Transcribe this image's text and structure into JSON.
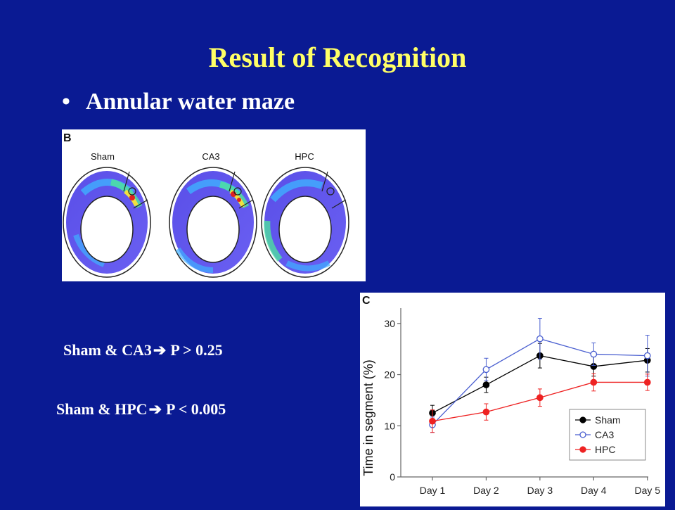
{
  "slide": {
    "title": "Result of Recognition",
    "bullet": "•",
    "subtitle": "Annular water maze",
    "stat1_label": "Sham & CA3",
    "stat1_value": "P > 0.25",
    "stat2_label": "Sham & HPC",
    "stat2_value": "P < 0.005",
    "arrow": "➔"
  },
  "panel_b": {
    "letter": "B",
    "labels": [
      "Sham",
      "CA3",
      "HPC"
    ]
  },
  "chart_data": {
    "type": "line",
    "panel_letter": "C",
    "ylabel": "Time in segment (%)",
    "xlabel": "",
    "categories": [
      "Day 1",
      "Day 2",
      "Day 3",
      "Day 4",
      "Day 5"
    ],
    "ylim": [
      0,
      33
    ],
    "yticks": [
      0,
      10,
      20,
      30
    ],
    "legend_position": "bottom-right",
    "series": [
      {
        "name": "Sham",
        "color": "#000000",
        "marker": "filled",
        "values": [
          12.5,
          18,
          23.7,
          21.6,
          22.8
        ],
        "errors": [
          1.5,
          1.5,
          2.4,
          1.9,
          2.3
        ]
      },
      {
        "name": "CA3",
        "color": "#4a5fd0",
        "marker": "open",
        "values": [
          10.2,
          21,
          27,
          24,
          23.7
        ],
        "errors": [
          1.5,
          2.2,
          4,
          2.2,
          4
        ]
      },
      {
        "name": "HPC",
        "color": "#ee2222",
        "marker": "filled",
        "values": [
          10.9,
          12.7,
          15.5,
          18.5,
          18.5
        ],
        "errors": [
          2.2,
          1.6,
          1.7,
          1.7,
          1.6
        ]
      }
    ]
  }
}
